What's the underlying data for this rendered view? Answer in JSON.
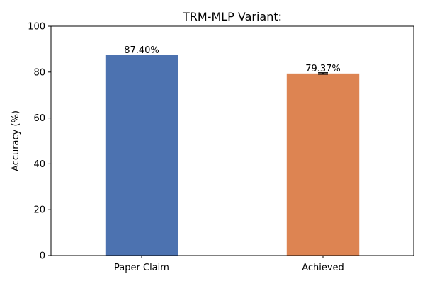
{
  "chart_data": {
    "type": "bar",
    "title": "TRM-MLP Variant:",
    "xlabel": "",
    "ylabel": "Accuracy (%)",
    "ylim": [
      0,
      100
    ],
    "yticks": [
      0,
      20,
      40,
      60,
      80,
      100
    ],
    "grid": false,
    "categories": [
      "Paper Claim",
      "Achieved"
    ],
    "values": [
      87.4,
      79.37
    ],
    "value_labels": [
      "87.40%",
      "79.37%"
    ],
    "error": [
      null,
      0.3
    ],
    "colors": [
      "#4c72b0",
      "#dd8452"
    ]
  }
}
